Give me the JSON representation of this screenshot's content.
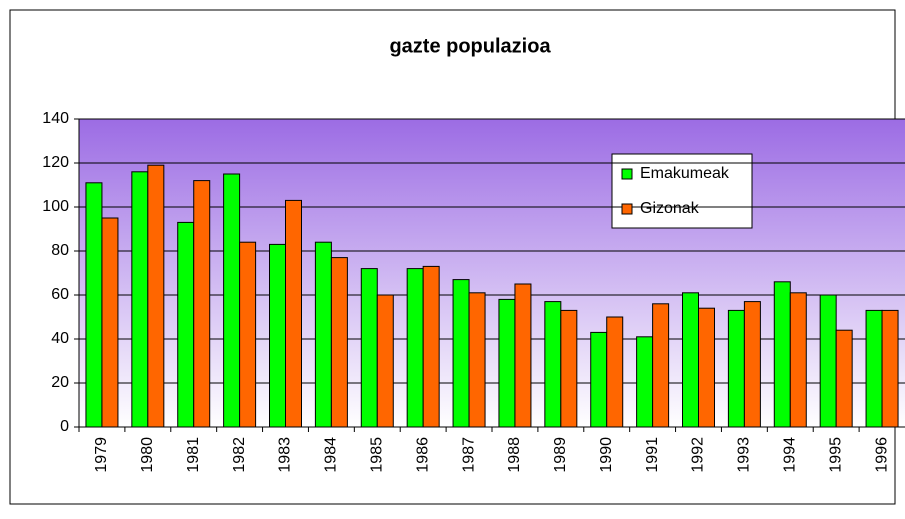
{
  "chart_data": {
    "type": "bar",
    "title": "gazte populazioa",
    "categories": [
      "1979",
      "1980",
      "1981",
      "1982",
      "1983",
      "1984",
      "1985",
      "1986",
      "1987",
      "1988",
      "1989",
      "1990",
      "1991",
      "1992",
      "1993",
      "1994",
      "1995",
      "1996"
    ],
    "series": [
      {
        "name": "Emakumeak",
        "color": "#00ff00",
        "values": [
          111,
          116,
          93,
          115,
          83,
          84,
          72,
          72,
          67,
          58,
          57,
          43,
          41,
          61,
          53,
          66,
          60,
          53
        ]
      },
      {
        "name": "Gizonak",
        "color": "#ff6600",
        "values": [
          95,
          119,
          112,
          84,
          103,
          77,
          60,
          73,
          61,
          65,
          53,
          50,
          56,
          54,
          57,
          61,
          44,
          53
        ]
      }
    ],
    "ylim": [
      0,
      140
    ],
    "yticks": [
      0,
      20,
      40,
      60,
      80,
      100,
      120,
      140
    ],
    "grid": true,
    "legend": "upper right"
  }
}
